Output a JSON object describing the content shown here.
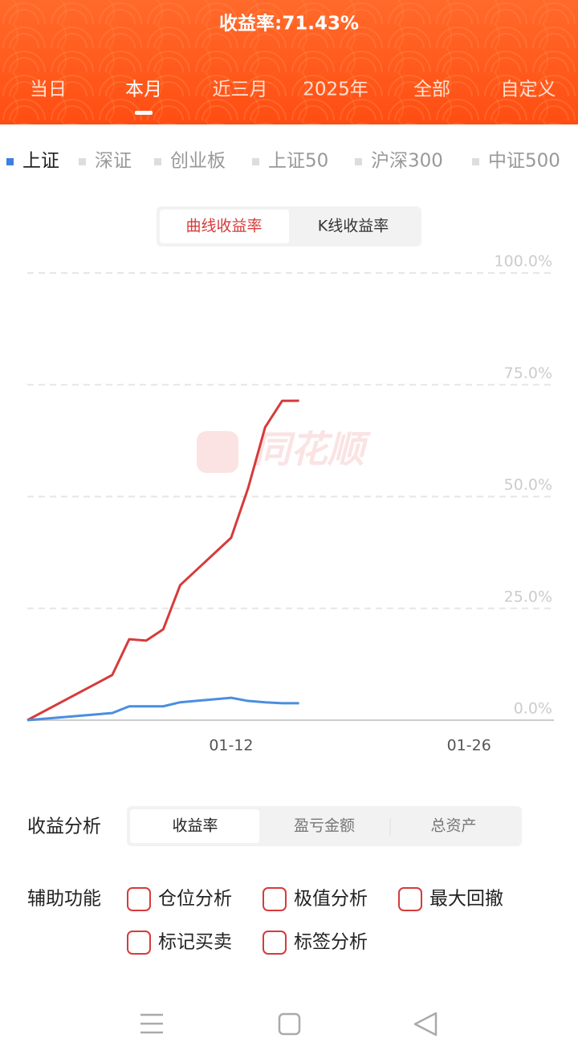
{
  "header": {
    "title": "收益率:71.43%",
    "tabs": [
      "当日",
      "本月",
      "近三月",
      "2025年",
      "全部",
      "自定义"
    ],
    "active_tab": 1
  },
  "index_tabs": {
    "items": [
      "上证",
      "深证",
      "创业板",
      "上证50",
      "沪深300",
      "中证500"
    ],
    "active": 0
  },
  "chart_mode_tabs": {
    "items": [
      "曲线收益率",
      "K线收益率"
    ],
    "active": 0
  },
  "chart_data": {
    "type": "line",
    "watermark": "同花顺",
    "x": [
      "12-31",
      "01-05",
      "01-06",
      "01-07",
      "01-08",
      "01-09",
      "01-12",
      "01-13",
      "01-14",
      "01-15",
      "01-16"
    ],
    "series": [
      {
        "color": "#d63b3b",
        "values": [
          0,
          10.1,
          18.1,
          17.8,
          20.3,
          30.2,
          40.8,
          51.9,
          65.5,
          71.4,
          71.43
        ]
      },
      {
        "color": "#4a8ee0",
        "values": [
          0,
          1.6,
          3.1,
          3.1,
          3.1,
          4.0,
          5.0,
          4.3,
          4.0,
          3.8,
          3.8
        ]
      }
    ],
    "xlim": [
      "12-31",
      "01-31"
    ],
    "xticks": [
      "01-12",
      "01-26"
    ],
    "ylim": [
      0,
      100
    ],
    "yticks": [
      {
        "value": 0,
        "label": "0.0%"
      },
      {
        "value": 25,
        "label": "25.0%"
      },
      {
        "value": 50,
        "label": "50.0%"
      },
      {
        "value": 75,
        "label": "75.0%"
      },
      {
        "value": 100,
        "label": "100.0%"
      }
    ],
    "grid": true
  },
  "analysis": {
    "label": "收益分析",
    "options": [
      "收益率",
      "盈亏金额",
      "总资产"
    ],
    "active": 0
  },
  "aux": {
    "label": "辅助功能",
    "options": [
      "仓位分析",
      "极值分析",
      "最大回撤",
      "标记买卖",
      "标签分析"
    ]
  }
}
